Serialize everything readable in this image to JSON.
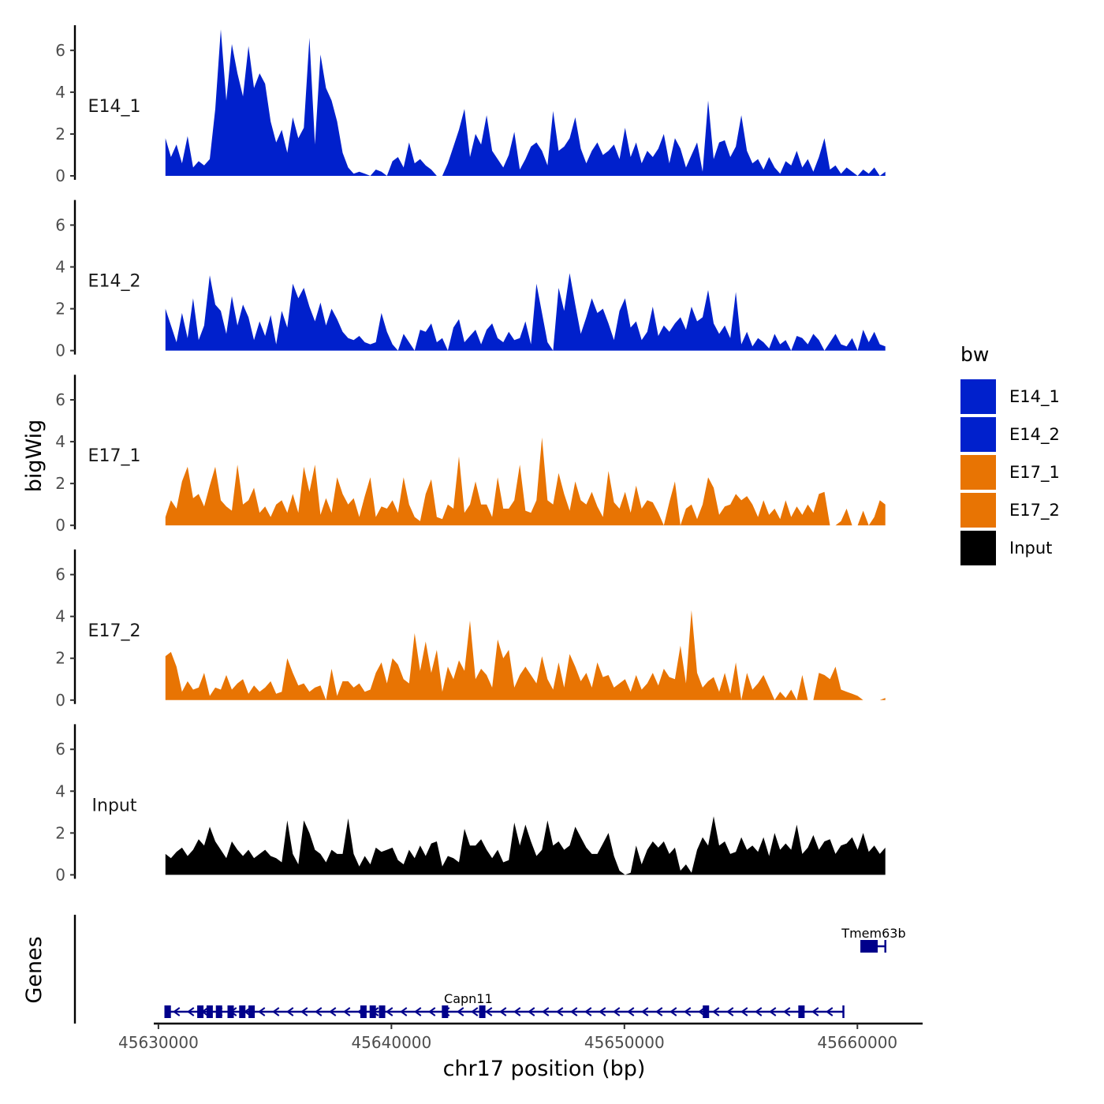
{
  "chart_data": {
    "type": "area",
    "title": "",
    "xlabel": "chr17 position (bp)",
    "ylabel": "bigWig",
    "genes_label": "Genes",
    "xlim": [
      45629800,
      45662800
    ],
    "x_ticks": [
      45630000,
      45640000,
      45650000,
      45660000
    ],
    "x_tick_labels": [
      "45630000",
      "45640000",
      "45650000",
      "45660000"
    ],
    "ylim": [
      0,
      7.2
    ],
    "y_ticks": [
      0,
      2,
      4,
      6
    ],
    "y_tick_labels": [
      "0",
      "2",
      "4",
      "6"
    ],
    "data_range": [
      45630300,
      45661200
    ],
    "legend": {
      "title": "bw",
      "entries": [
        {
          "name": "E14_1",
          "color": "#0020CC"
        },
        {
          "name": "E14_2",
          "color": "#0020CC"
        },
        {
          "name": "E17_1",
          "color": "#E87403"
        },
        {
          "name": "E17_2",
          "color": "#E87403"
        },
        {
          "name": "Input",
          "color": "#000000"
        }
      ]
    },
    "series": [
      {
        "name": "E14_1",
        "color": "#0020CC",
        "values": [
          1.8,
          0.9,
          1.5,
          0.6,
          1.9,
          0.4,
          0.7,
          0.5,
          0.8,
          3.2,
          7.0,
          3.6,
          6.3,
          4.9,
          3.8,
          6.2,
          4.2,
          4.9,
          4.4,
          2.6,
          1.6,
          2.2,
          1.1,
          2.8,
          1.8,
          2.3,
          6.6,
          1.5,
          5.8,
          4.2,
          3.6,
          2.6,
          1.1,
          0.4,
          0.1,
          0.2,
          0.1,
          0.0,
          0.3,
          0.2,
          0.0,
          0.7,
          0.9,
          0.4,
          1.6,
          0.6,
          0.8,
          0.5,
          0.3,
          0.0,
          0.0,
          0.6,
          1.4,
          2.2,
          3.2,
          0.9,
          2.0,
          1.5,
          2.9,
          1.2,
          0.8,
          0.4,
          1.0,
          2.1,
          0.3,
          0.8,
          1.4,
          1.6,
          1.2,
          0.5,
          3.1,
          1.2,
          1.4,
          1.8,
          2.8,
          1.3,
          0.6,
          1.2,
          1.6,
          1.0,
          1.2,
          1.5,
          0.8,
          2.3,
          0.9,
          1.6,
          0.6,
          1.2,
          0.9,
          1.3,
          2.0,
          0.6,
          1.8,
          1.3,
          0.4,
          1.0,
          1.6,
          0.2,
          3.6,
          0.8,
          1.6,
          1.7,
          0.9,
          1.4,
          2.9,
          1.2,
          0.6,
          0.8,
          0.3,
          0.9,
          0.4,
          0.1,
          0.7,
          0.5,
          1.2,
          0.4,
          0.8,
          0.2,
          0.9,
          1.8,
          0.3,
          0.5,
          0.1,
          0.4,
          0.2,
          0.0,
          0.3,
          0.1,
          0.4,
          0.0,
          0.2
        ]
      },
      {
        "name": "E14_2",
        "color": "#0020CC",
        "values": [
          2.0,
          1.2,
          0.4,
          1.8,
          0.6,
          2.5,
          0.5,
          1.2,
          3.6,
          2.2,
          1.9,
          0.8,
          2.6,
          1.2,
          2.2,
          1.6,
          0.5,
          1.4,
          0.7,
          1.7,
          0.3,
          1.9,
          1.1,
          3.2,
          2.5,
          3.0,
          2.1,
          1.4,
          2.3,
          1.2,
          2.0,
          1.5,
          0.9,
          0.6,
          0.5,
          0.7,
          0.4,
          0.3,
          0.4,
          1.8,
          0.9,
          0.3,
          0.0,
          0.8,
          0.4,
          0.0,
          1.0,
          0.9,
          1.3,
          0.4,
          0.6,
          0.0,
          1.1,
          1.5,
          0.4,
          0.7,
          1.0,
          0.3,
          1.0,
          1.3,
          0.6,
          0.4,
          0.9,
          0.5,
          0.6,
          1.4,
          0.3,
          3.2,
          1.8,
          0.4,
          0.0,
          3.0,
          1.9,
          3.7,
          2.2,
          0.8,
          1.6,
          2.5,
          1.8,
          2.0,
          1.3,
          0.5,
          1.9,
          2.5,
          1.1,
          1.4,
          0.5,
          0.9,
          2.1,
          0.7,
          1.2,
          0.9,
          1.3,
          1.6,
          1.0,
          2.1,
          1.4,
          1.6,
          2.9,
          1.3,
          0.8,
          1.2,
          0.6,
          2.8,
          0.3,
          0.9,
          0.2,
          0.6,
          0.4,
          0.1,
          0.8,
          0.3,
          0.5,
          0.0,
          0.7,
          0.6,
          0.3,
          0.8,
          0.5,
          0.0,
          0.4,
          0.8,
          0.3,
          0.2,
          0.6,
          0.0,
          1.0,
          0.4,
          0.9,
          0.3,
          0.2
        ]
      },
      {
        "name": "E17_1",
        "color": "#E87403",
        "values": [
          0.4,
          1.2,
          0.8,
          2.1,
          2.8,
          1.3,
          1.5,
          0.9,
          1.9,
          2.8,
          1.2,
          0.9,
          0.7,
          2.9,
          1.0,
          1.2,
          1.8,
          0.6,
          0.9,
          0.4,
          1.0,
          1.2,
          0.6,
          1.5,
          0.6,
          2.8,
          1.6,
          2.9,
          0.5,
          1.3,
          0.6,
          2.3,
          1.5,
          1.0,
          1.3,
          0.4,
          1.4,
          2.3,
          0.4,
          0.9,
          0.8,
          1.2,
          0.6,
          2.3,
          1.0,
          0.4,
          0.2,
          1.5,
          2.2,
          0.4,
          0.3,
          1.0,
          0.8,
          3.3,
          0.6,
          1.0,
          2.1,
          1.0,
          1.0,
          0.4,
          2.3,
          0.8,
          0.8,
          1.2,
          2.9,
          0.7,
          0.6,
          1.2,
          4.2,
          1.2,
          1.0,
          2.5,
          1.5,
          0.7,
          2.1,
          1.2,
          1.0,
          1.6,
          0.9,
          0.4,
          2.6,
          1.1,
          0.8,
          1.6,
          0.6,
          1.9,
          0.8,
          1.2,
          1.1,
          0.6,
          0.0,
          1.1,
          2.1,
          0.0,
          0.8,
          1.0,
          0.3,
          1.0,
          2.3,
          1.8,
          0.5,
          0.9,
          1.0,
          1.5,
          1.2,
          1.4,
          1.0,
          0.4,
          1.2,
          0.5,
          0.8,
          0.3,
          1.2,
          0.4,
          0.9,
          0.5,
          1.0,
          0.6,
          1.5,
          1.6,
          0.0,
          0.0,
          0.2,
          0.8,
          0.0,
          0.0,
          0.7,
          0.0,
          0.4,
          1.2,
          1.0
        ]
      },
      {
        "name": "E17_2",
        "color": "#E87403",
        "values": [
          2.1,
          2.3,
          1.6,
          0.4,
          0.9,
          0.5,
          0.6,
          1.3,
          0.2,
          0.6,
          0.5,
          1.2,
          0.5,
          0.8,
          1.0,
          0.3,
          0.7,
          0.4,
          0.6,
          0.9,
          0.3,
          0.4,
          2.0,
          1.3,
          0.7,
          0.8,
          0.4,
          0.6,
          0.7,
          0.0,
          1.5,
          0.2,
          0.9,
          0.9,
          0.6,
          0.8,
          0.4,
          0.5,
          1.3,
          1.8,
          0.8,
          2.0,
          1.7,
          1.0,
          0.8,
          3.2,
          1.4,
          2.8,
          1.3,
          2.4,
          0.4,
          1.6,
          1.0,
          1.9,
          1.4,
          3.8,
          1.0,
          1.5,
          1.2,
          0.6,
          2.9,
          2.0,
          2.4,
          0.6,
          1.2,
          1.6,
          1.2,
          0.8,
          2.1,
          1.0,
          0.5,
          1.8,
          0.6,
          2.2,
          1.6,
          0.9,
          1.3,
          0.6,
          1.8,
          1.1,
          1.2,
          0.6,
          0.8,
          1.0,
          0.4,
          1.2,
          0.5,
          0.8,
          1.3,
          0.7,
          1.5,
          1.1,
          1.0,
          2.6,
          0.8,
          4.3,
          1.3,
          0.6,
          0.9,
          1.1,
          0.4,
          1.3,
          0.3,
          1.8,
          0.0,
          1.3,
          0.5,
          0.8,
          1.2,
          0.6,
          0.0,
          0.4,
          0.1,
          0.5,
          0.0,
          1.2,
          0.0,
          0.0,
          1.3,
          1.2,
          1.0,
          1.6,
          0.5,
          0.4,
          0.3,
          0.2,
          0.0,
          0.0,
          0.0,
          0.0,
          0.1
        ]
      },
      {
        "name": "Input",
        "color": "#000000",
        "values": [
          1.0,
          0.8,
          1.1,
          1.3,
          0.9,
          1.2,
          1.7,
          1.4,
          2.3,
          1.6,
          1.2,
          0.8,
          1.6,
          1.2,
          0.9,
          1.2,
          0.8,
          1.0,
          1.2,
          0.9,
          0.8,
          0.6,
          2.6,
          1.0,
          0.5,
          2.6,
          2.0,
          1.2,
          1.0,
          0.6,
          1.2,
          1.0,
          1.0,
          2.7,
          1.0,
          0.4,
          0.9,
          0.5,
          1.3,
          1.1,
          1.2,
          1.3,
          0.7,
          0.5,
          1.2,
          0.8,
          1.4,
          0.9,
          1.5,
          1.6,
          0.4,
          0.9,
          0.8,
          0.6,
          2.2,
          1.4,
          1.4,
          1.7,
          1.2,
          0.8,
          1.2,
          0.6,
          0.7,
          2.5,
          1.4,
          2.4,
          1.6,
          0.9,
          1.2,
          2.6,
          1.4,
          1.6,
          1.2,
          1.4,
          2.3,
          1.8,
          1.3,
          1.0,
          1.0,
          1.5,
          2.0,
          0.9,
          0.2,
          0.0,
          0.1,
          1.4,
          0.5,
          1.2,
          1.6,
          1.3,
          1.6,
          1.0,
          1.3,
          0.2,
          0.5,
          0.1,
          1.2,
          1.8,
          1.4,
          2.8,
          1.4,
          1.6,
          1.0,
          1.1,
          1.8,
          1.2,
          1.4,
          1.1,
          1.8,
          0.9,
          2.0,
          1.2,
          1.5,
          1.2,
          2.4,
          1.0,
          1.3,
          1.9,
          1.2,
          1.6,
          1.7,
          1.0,
          1.4,
          1.5,
          1.8,
          1.2,
          2.0,
          1.1,
          1.4,
          1.0,
          1.3
        ]
      }
    ],
    "genes": [
      {
        "name": "Capn11",
        "color": "#00008B",
        "start": 45630300,
        "end": 45659400,
        "strand": "-",
        "row": 2,
        "label_pos": 45643300,
        "exons": [
          45630400,
          45631800,
          45632200,
          45632600,
          45633100,
          45633600,
          45634000,
          45638800,
          45639200,
          45639600,
          45642300,
          45643900,
          45653500,
          45657600
        ]
      },
      {
        "name": "Tmem63b",
        "color": "#00008B",
        "start": 45660200,
        "end": 45661200,
        "strand": "+",
        "row": 1,
        "label_pos": 45660700,
        "exons": [
          45660500
        ]
      }
    ]
  }
}
